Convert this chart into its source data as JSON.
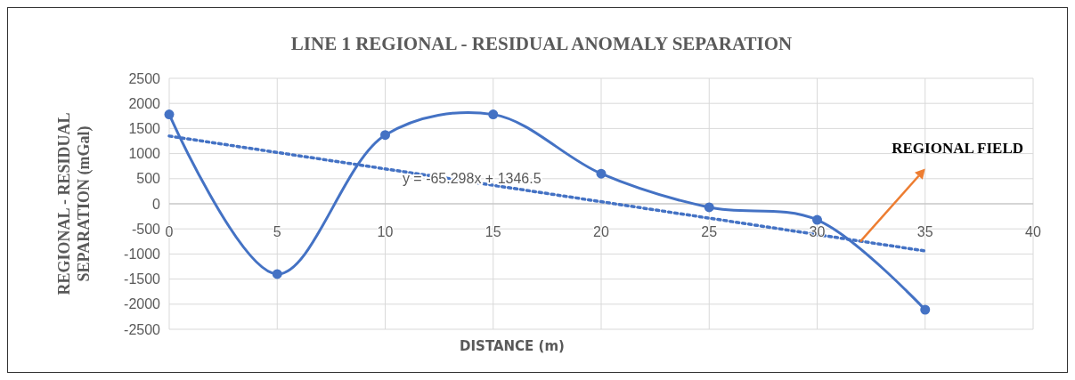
{
  "chart_data": {
    "type": "line",
    "title": "LINE 1 REGIONAL - RESIDUAL  ANOMALY SEPARATION",
    "xlabel": "DISTANCE (m)",
    "ylabel": "REGIONAL - RESIDUAL\nSEPARATION (mGal)",
    "x": [
      0,
      5,
      10,
      15,
      20,
      25,
      30,
      35
    ],
    "series": [
      {
        "color": "#4472c4",
        "values": [
          1780,
          -1400,
          1370,
          1780,
          600,
          -70,
          -320,
          -2110
        ],
        "marker": "circle",
        "line_style": "solid"
      },
      {
        "color": "#4472c4",
        "x": [
          0,
          35
        ],
        "values": [
          1350,
          -940
        ],
        "marker": "none",
        "line_style": "dotted"
      }
    ],
    "annotations": [
      "y = -65.298x + 1346.5",
      "REGIONAL FIELD"
    ],
    "xlim": [
      0,
      40
    ],
    "xticks": [
      0,
      5,
      10,
      15,
      20,
      25,
      30,
      35,
      40
    ],
    "ylim": [
      -2500,
      2500
    ],
    "yticks": [
      -2500,
      -2000,
      -1500,
      -1000,
      -500,
      0,
      500,
      1000,
      1500,
      2000,
      2500
    ],
    "grid": true
  }
}
